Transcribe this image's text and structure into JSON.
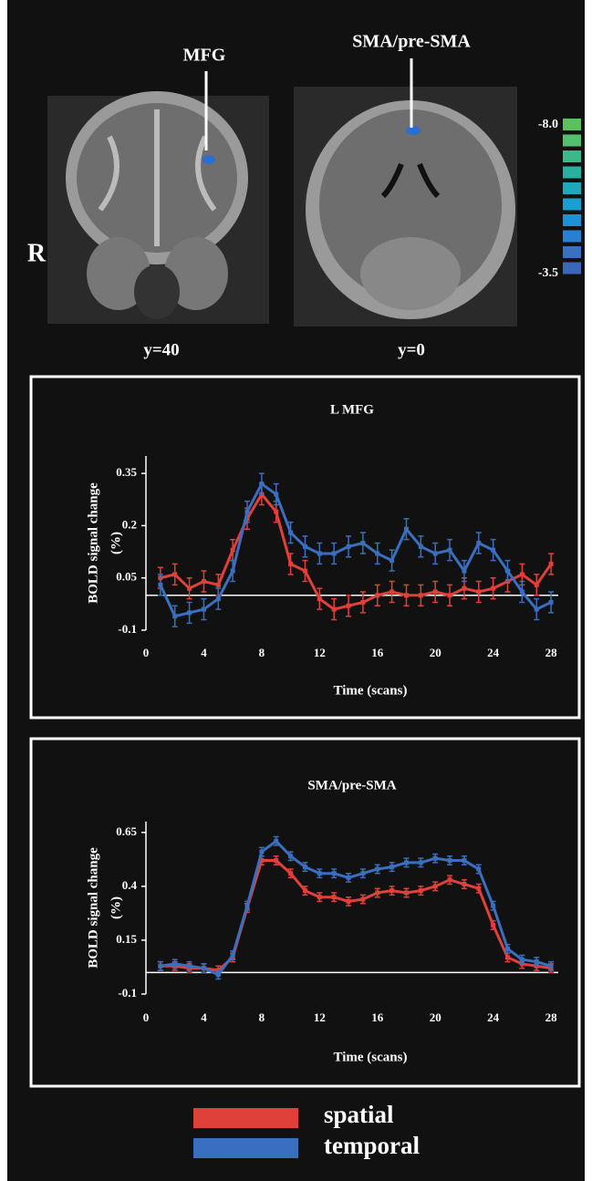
{
  "figure": {
    "labels": {
      "mfg": "MFG",
      "sma": "SMA/pre-SMA",
      "side": "R",
      "slice_left": "y=40",
      "slice_right": "y=0"
    },
    "colorbar": {
      "max_label": "-8.0",
      "min_label": "-3.5",
      "colors": [
        "#5cc05c",
        "#55bf70",
        "#3cb88a",
        "#2ab0a0",
        "#20a8b8",
        "#1aa0d0",
        "#1e90d8",
        "#2a80d0",
        "#3a70c0",
        "#3a68b8"
      ]
    }
  },
  "chart_data": [
    {
      "type": "line",
      "title": "L MFG",
      "y_label": [
        "BOLD signal change",
        "(%)"
      ],
      "x_label": "Time (scans)",
      "x": [
        1,
        2,
        3,
        4,
        5,
        6,
        7,
        8,
        9,
        10,
        11,
        12,
        13,
        14,
        15,
        16,
        17,
        18,
        19,
        20,
        21,
        22,
        23,
        24,
        25,
        26,
        27,
        28
      ],
      "xlim": [
        0,
        28.5
      ],
      "xticks": [
        0,
        4,
        8,
        12,
        16,
        20,
        24,
        28
      ],
      "ylim": [
        -0.1,
        0.4
      ],
      "yticks": [
        -0.1,
        0.05,
        0.2,
        0.35
      ],
      "series": [
        {
          "name": "spatial",
          "color": "#e0403a",
          "error": 0.03,
          "values": [
            0.05,
            0.06,
            0.02,
            0.04,
            0.03,
            0.13,
            0.22,
            0.29,
            0.24,
            0.09,
            0.07,
            -0.01,
            -0.04,
            -0.03,
            -0.02,
            0.0,
            0.01,
            0.0,
            0.0,
            0.01,
            0.0,
            0.02,
            0.01,
            0.02,
            0.04,
            0.06,
            0.03,
            0.09
          ]
        },
        {
          "name": "temporal",
          "color": "#3a6fc0",
          "error": 0.03,
          "values": [
            0.03,
            -0.06,
            -0.05,
            -0.04,
            -0.01,
            0.07,
            0.24,
            0.32,
            0.29,
            0.18,
            0.14,
            0.12,
            0.12,
            0.14,
            0.15,
            0.12,
            0.1,
            0.19,
            0.14,
            0.12,
            0.13,
            0.07,
            0.15,
            0.13,
            0.07,
            0.01,
            -0.04,
            -0.02
          ]
        }
      ]
    },
    {
      "type": "line",
      "title": "SMA/pre-SMA",
      "y_label": [
        "BOLD signal change",
        "(%)"
      ],
      "x_label": "Time (scans)",
      "x": [
        1,
        2,
        3,
        4,
        5,
        6,
        7,
        8,
        9,
        10,
        11,
        12,
        13,
        14,
        15,
        16,
        17,
        18,
        19,
        20,
        21,
        22,
        23,
        24,
        25,
        26,
        27,
        28
      ],
      "xlim": [
        0,
        28.5
      ],
      "xticks": [
        0,
        4,
        8,
        12,
        16,
        20,
        24,
        28
      ],
      "ylim": [
        -0.1,
        0.7
      ],
      "yticks": [
        -0.1,
        0.15,
        0.4,
        0.65
      ],
      "series": [
        {
          "color": "#e0403a",
          "error": 0.02,
          "values": [
            0.03,
            0.03,
            0.02,
            0.02,
            0.01,
            0.07,
            0.3,
            0.52,
            0.52,
            0.46,
            0.38,
            0.35,
            0.35,
            0.33,
            0.34,
            0.37,
            0.38,
            0.37,
            0.38,
            0.4,
            0.43,
            0.41,
            0.39,
            0.22,
            0.07,
            0.04,
            0.03,
            0.02
          ]
        },
        {
          "color": "#3a6fc0",
          "error": 0.02,
          "values": [
            0.03,
            0.04,
            0.03,
            0.02,
            -0.01,
            0.08,
            0.31,
            0.56,
            0.61,
            0.54,
            0.49,
            0.46,
            0.46,
            0.44,
            0.46,
            0.48,
            0.49,
            0.51,
            0.51,
            0.53,
            0.52,
            0.52,
            0.48,
            0.31,
            0.11,
            0.06,
            0.05,
            0.03
          ]
        }
      ]
    }
  ]
}
